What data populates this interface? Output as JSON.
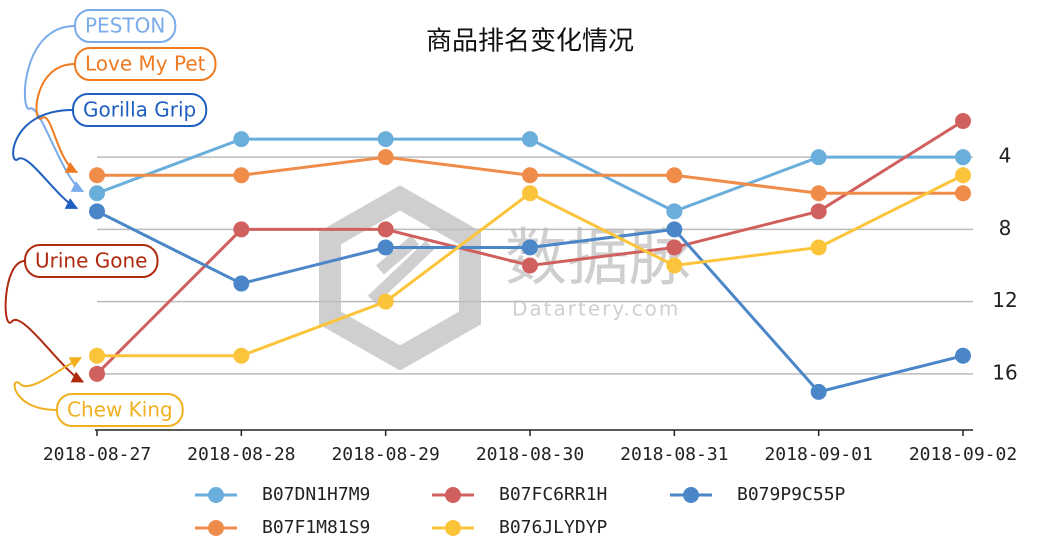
{
  "chart_data": {
    "type": "line",
    "title": "商品排名变化情况",
    "categories": [
      "2018-08-27",
      "2018-08-28",
      "2018-08-29",
      "2018-08-30",
      "2018-08-31",
      "2018-09-01",
      "2018-09-02"
    ],
    "series": [
      {
        "name": "B07DN1H7M9",
        "color": "#6aaedc",
        "values": [
          6,
          3,
          3,
          3,
          7,
          4,
          4
        ]
      },
      {
        "name": "B07FC6RR1H",
        "color": "#d0605e",
        "values": [
          16,
          8,
          8,
          10,
          9,
          7,
          2
        ]
      },
      {
        "name": "B079P9C55P",
        "color": "#4a86c8",
        "values": [
          7,
          11,
          9,
          9,
          8,
          17,
          15
        ]
      },
      {
        "name": "B07F1M81S9",
        "color": "#f08c4a",
        "values": [
          5,
          5,
          4,
          5,
          5,
          6,
          6
        ]
      },
      {
        "name": "B076JLYDYP",
        "color": "#fcc43a",
        "values": [
          15,
          15,
          12,
          6,
          10,
          9,
          5
        ]
      }
    ],
    "ylim": [
      1,
      19
    ],
    "y_inverted": true,
    "yticks": [
      4,
      8,
      12,
      16
    ],
    "y_axis_side": "right",
    "grid": true,
    "legend": "bottom",
    "annotations": [
      {
        "text": "PESTON",
        "color": "#7aabea"
      },
      {
        "text": "Love My Pet",
        "color": "#f07a20"
      },
      {
        "text": "Gorilla Grip",
        "color": "#1f5fc0"
      },
      {
        "text": "Urine Gone",
        "color": "#b02a10"
      },
      {
        "text": "Chew King",
        "color": "#f0b020"
      }
    ],
    "watermark": {
      "text": "数据脉",
      "url": "Datartery.com"
    }
  }
}
